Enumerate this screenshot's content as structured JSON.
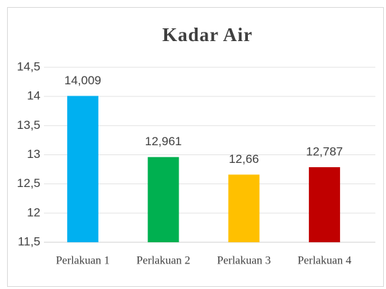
{
  "chart_data": {
    "type": "bar",
    "title": "Kadar Air",
    "categories": [
      "Perlakuan 1",
      "Perlakuan 2",
      "Perlakuan 3",
      "Perlakuan 4"
    ],
    "values": [
      14.009,
      12.961,
      12.66,
      12.787
    ],
    "value_labels": [
      "14,009",
      "12,961",
      "12,66",
      "12,787"
    ],
    "colors": [
      "#00b0f0",
      "#00b050",
      "#ffc000",
      "#c00000"
    ],
    "ylim": [
      11.5,
      14.5
    ],
    "yticks": [
      {
        "value": 11.5,
        "label": "11,5"
      },
      12,
      {
        "value": 12.5,
        "label": "12,5"
      },
      13,
      {
        "value": 13.5,
        "label": "13,5"
      },
      14,
      {
        "value": 14.5,
        "label": "14,5"
      }
    ],
    "grid": true
  }
}
